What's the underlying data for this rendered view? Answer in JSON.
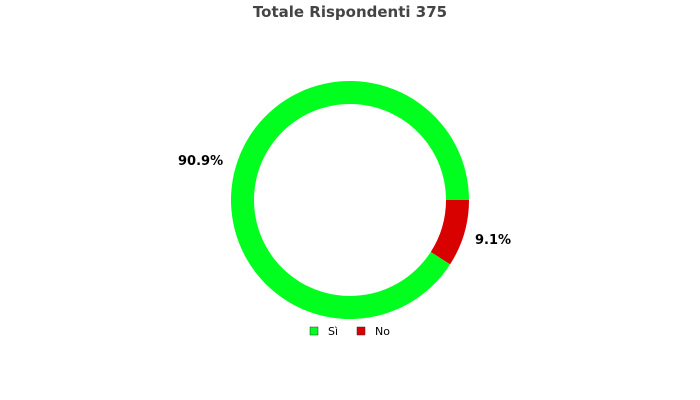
{
  "chart_data": {
    "type": "pie",
    "variant": "donut",
    "title": "Totale Rispondenti 375",
    "slices": [
      {
        "label": "Sì",
        "percent": 90.9,
        "percent_label": "90.9%",
        "color": "#00ff1e"
      },
      {
        "label": "No",
        "percent": 9.1,
        "percent_label": "9.1%",
        "color": "#d90000"
      }
    ],
    "legend": {
      "placement": "bottom-center",
      "entries": [
        "Sì",
        "No"
      ]
    }
  }
}
